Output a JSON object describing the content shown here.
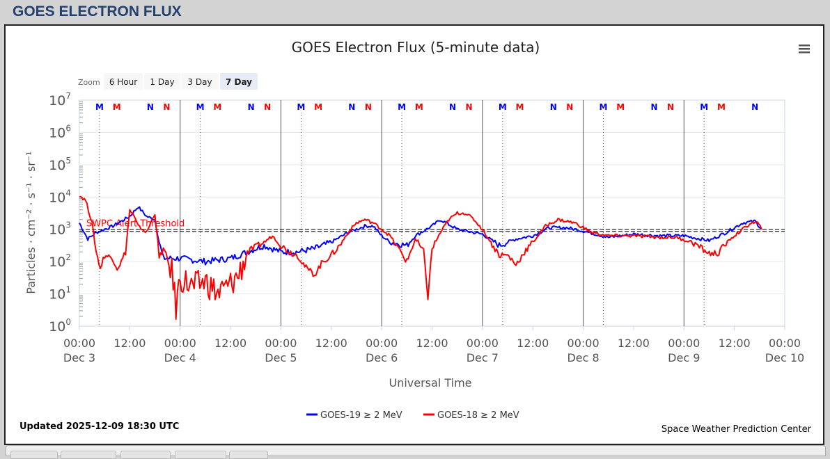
{
  "page_title": "GOES ELECTRON FLUX",
  "zoom": {
    "label": "Zoom",
    "buttons": [
      "6 Hour",
      "1 Day",
      "3 Day",
      "7 Day"
    ],
    "selected": "7 Day"
  },
  "menu_icon": "hamburger-menu-icon",
  "updated": "Updated 2025-12-09 18:30 UTC",
  "credit": "Space Weather Prediction Center",
  "chart_data": {
    "type": "line",
    "title": "GOES Electron Flux (5-minute data)",
    "xlabel": "Universal Time",
    "ylabel": "Particles · cm⁻² · s⁻¹ · sr⁻¹",
    "ylim_log10": [
      0,
      7
    ],
    "yticks": [
      {
        "exp": "0"
      },
      {
        "exp": "1"
      },
      {
        "exp": "2"
      },
      {
        "exp": "3"
      },
      {
        "exp": "4"
      },
      {
        "exp": "5"
      },
      {
        "exp": "6"
      },
      {
        "exp": "7"
      }
    ],
    "x_hours_range": [
      0,
      168
    ],
    "xticks": [
      {
        "h": 0,
        "t": "00:00",
        "d": "Dec 3"
      },
      {
        "h": 12,
        "t": "12:00",
        "d": ""
      },
      {
        "h": 24,
        "t": "00:00",
        "d": "Dec 4"
      },
      {
        "h": 36,
        "t": "12:00",
        "d": ""
      },
      {
        "h": 48,
        "t": "00:00",
        "d": "Dec 5"
      },
      {
        "h": 60,
        "t": "12:00",
        "d": ""
      },
      {
        "h": 72,
        "t": "00:00",
        "d": "Dec 6"
      },
      {
        "h": 84,
        "t": "12:00",
        "d": ""
      },
      {
        "h": 96,
        "t": "00:00",
        "d": "Dec 7"
      },
      {
        "h": 108,
        "t": "12:00",
        "d": ""
      },
      {
        "h": 120,
        "t": "00:00",
        "d": "Dec 8"
      },
      {
        "h": 132,
        "t": "12:00",
        "d": ""
      },
      {
        "h": 144,
        "t": "00:00",
        "d": "Dec 9"
      },
      {
        "h": 156,
        "t": "12:00",
        "d": ""
      },
      {
        "h": 168,
        "t": "00:00",
        "d": "Dec 10"
      }
    ],
    "threshold": {
      "label": "SWPC Alert Threshold",
      "value": 1000,
      "log10": 3
    },
    "markers": [
      {
        "h": 4.8,
        "l": "M",
        "c": "#0000ff"
      },
      {
        "h": 8.9,
        "l": "M",
        "c": "#ff0000"
      },
      {
        "h": 16.9,
        "l": "N",
        "c": "#0000ff"
      },
      {
        "h": 20.8,
        "l": "N",
        "c": "#ff0000"
      },
      {
        "h": 28.8,
        "l": "M",
        "c": "#0000ff"
      },
      {
        "h": 32.9,
        "l": "M",
        "c": "#ff0000"
      },
      {
        "h": 40.9,
        "l": "N",
        "c": "#0000ff"
      },
      {
        "h": 44.8,
        "l": "N",
        "c": "#ff0000"
      },
      {
        "h": 52.8,
        "l": "M",
        "c": "#0000ff"
      },
      {
        "h": 56.9,
        "l": "M",
        "c": "#ff0000"
      },
      {
        "h": 64.9,
        "l": "N",
        "c": "#0000ff"
      },
      {
        "h": 68.8,
        "l": "N",
        "c": "#ff0000"
      },
      {
        "h": 76.8,
        "l": "M",
        "c": "#0000ff"
      },
      {
        "h": 80.9,
        "l": "M",
        "c": "#ff0000"
      },
      {
        "h": 88.9,
        "l": "N",
        "c": "#0000ff"
      },
      {
        "h": 92.8,
        "l": "N",
        "c": "#ff0000"
      },
      {
        "h": 100.8,
        "l": "M",
        "c": "#0000ff"
      },
      {
        "h": 104.9,
        "l": "M",
        "c": "#ff0000"
      },
      {
        "h": 112.9,
        "l": "N",
        "c": "#0000ff"
      },
      {
        "h": 116.8,
        "l": "N",
        "c": "#ff0000"
      },
      {
        "h": 124.8,
        "l": "M",
        "c": "#0000ff"
      },
      {
        "h": 128.9,
        "l": "M",
        "c": "#ff0000"
      },
      {
        "h": 136.9,
        "l": "N",
        "c": "#0000ff"
      },
      {
        "h": 140.8,
        "l": "N",
        "c": "#ff0000"
      },
      {
        "h": 148.8,
        "l": "M",
        "c": "#0000ff"
      },
      {
        "h": 152.9,
        "l": "M",
        "c": "#ff0000"
      },
      {
        "h": 160.9,
        "l": "N",
        "c": "#0000ff"
      }
    ],
    "series": [
      {
        "name": "GOES-19 ≥ 2 MeV",
        "color": "#0000ff",
        "log10_points": [
          [
            0,
            3.2
          ],
          [
            2,
            2.7
          ],
          [
            4,
            2.9
          ],
          [
            8,
            3.1
          ],
          [
            12,
            3.4
          ],
          [
            14,
            3.7
          ],
          [
            16,
            3.4
          ],
          [
            18,
            3.3
          ],
          [
            19,
            2.6
          ],
          [
            20,
            2.1
          ],
          [
            24,
            2.1
          ],
          [
            30,
            2.0
          ],
          [
            36,
            2.1
          ],
          [
            40,
            2.3
          ],
          [
            44,
            2.5
          ],
          [
            48,
            2.3
          ],
          [
            52,
            2.3
          ],
          [
            56,
            2.4
          ],
          [
            60,
            2.6
          ],
          [
            64,
            2.9
          ],
          [
            68,
            3.1
          ],
          [
            70,
            3.1
          ],
          [
            72,
            2.8
          ],
          [
            74,
            2.6
          ],
          [
            78,
            2.5
          ],
          [
            80,
            2.8
          ],
          [
            84,
            3.1
          ],
          [
            86,
            3.3
          ],
          [
            90,
            3.0
          ],
          [
            96,
            2.85
          ],
          [
            100,
            2.5
          ],
          [
            104,
            2.7
          ],
          [
            108,
            2.8
          ],
          [
            112,
            3.05
          ],
          [
            116,
            3.05
          ],
          [
            120,
            2.95
          ],
          [
            126,
            2.75
          ],
          [
            132,
            2.85
          ],
          [
            138,
            2.8
          ],
          [
            144,
            2.8
          ],
          [
            150,
            2.65
          ],
          [
            154,
            2.9
          ],
          [
            158,
            3.2
          ],
          [
            161,
            3.25
          ],
          [
            162.5,
            3.0
          ]
        ]
      },
      {
        "name": "GOES-18 ≥ 2 MeV",
        "color": "#ff0000",
        "log10_points": [
          [
            0,
            4.05
          ],
          [
            1.5,
            3.9
          ],
          [
            3,
            3.2
          ],
          [
            4,
            2.3
          ],
          [
            5,
            1.8
          ],
          [
            6,
            2.2
          ],
          [
            8,
            2.1
          ],
          [
            9,
            1.8
          ],
          [
            10,
            2.0
          ],
          [
            11,
            2.3
          ],
          [
            12,
            3.6
          ],
          [
            13,
            3.4
          ],
          [
            14,
            3.1
          ],
          [
            16,
            2.9
          ],
          [
            18,
            3.5
          ],
          [
            19,
            2.1
          ],
          [
            20,
            2.4
          ],
          [
            22,
            1.7
          ],
          [
            23,
            0.6
          ],
          [
            24,
            1.5
          ],
          [
            27,
            1.2
          ],
          [
            30,
            1.4
          ],
          [
            33,
            1.0
          ],
          [
            36,
            1.3
          ],
          [
            38,
            1.6
          ],
          [
            40,
            2.3
          ],
          [
            44,
            2.6
          ],
          [
            46,
            2.8
          ],
          [
            48,
            2.5
          ],
          [
            50,
            2.3
          ],
          [
            52,
            2.2
          ],
          [
            54,
            1.8
          ],
          [
            56,
            1.6
          ],
          [
            58,
            2.0
          ],
          [
            60,
            2.2
          ],
          [
            62,
            2.5
          ],
          [
            64,
            2.9
          ],
          [
            66,
            3.2
          ],
          [
            68,
            3.3
          ],
          [
            70,
            3.2
          ],
          [
            72,
            3.0
          ],
          [
            74,
            2.8
          ],
          [
            76,
            2.4
          ],
          [
            78,
            2.0
          ],
          [
            80,
            2.7
          ],
          [
            82,
            2.3
          ],
          [
            83,
            0.9
          ],
          [
            84,
            2.4
          ],
          [
            86,
            2.9
          ],
          [
            88,
            3.3
          ],
          [
            90,
            3.5
          ],
          [
            92,
            3.5
          ],
          [
            94,
            3.3
          ],
          [
            96,
            3.0
          ],
          [
            98,
            2.6
          ],
          [
            100,
            2.2
          ],
          [
            102,
            2.2
          ],
          [
            104,
            1.9
          ],
          [
            106,
            2.3
          ],
          [
            108,
            2.6
          ],
          [
            111,
            3.1
          ],
          [
            114,
            3.3
          ],
          [
            118,
            3.2
          ],
          [
            122,
            2.9
          ],
          [
            126,
            2.8
          ],
          [
            132,
            2.8
          ],
          [
            138,
            2.75
          ],
          [
            142,
            2.75
          ],
          [
            146,
            2.6
          ],
          [
            150,
            2.25
          ],
          [
            152,
            2.25
          ],
          [
            155,
            2.7
          ],
          [
            158,
            3.0
          ],
          [
            160,
            3.2
          ],
          [
            161.5,
            3.2
          ],
          [
            162.5,
            3.0
          ]
        ]
      }
    ],
    "legend_placement": "bottom-center"
  }
}
